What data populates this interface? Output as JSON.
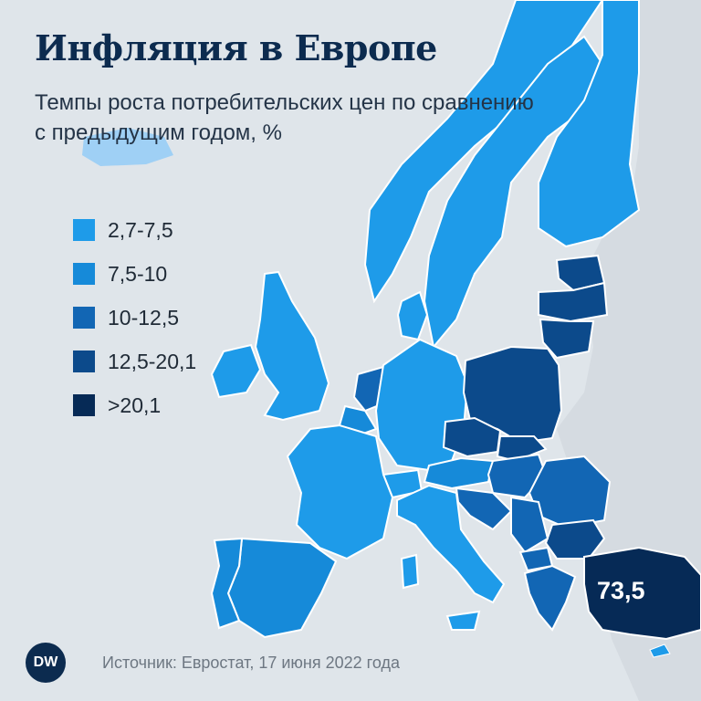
{
  "header": {
    "title": "Инфляция в Европе",
    "subtitle": "Темпы роста потребительских цен по сравнению с предыдущим годом, %"
  },
  "legend": {
    "items": [
      {
        "label": "2,7-7,5",
        "color": "#1e9be9"
      },
      {
        "label": "7,5-10",
        "color": "#168ad9"
      },
      {
        "label": "10-12,5",
        "color": "#1266b4"
      },
      {
        "label": "12,5-20,1",
        "color": "#0c4a8b"
      },
      {
        "label": ">20,1",
        "color": "#062a56"
      }
    ]
  },
  "map": {
    "turkey_value": "73,5",
    "land_color": "#dfe5ea",
    "sea_color": "#e7ecf0",
    "border_color": "#ffffff"
  },
  "footer": {
    "logo_text": "DW",
    "source": "Источник: Евростат, 17 июня 2022 года"
  }
}
